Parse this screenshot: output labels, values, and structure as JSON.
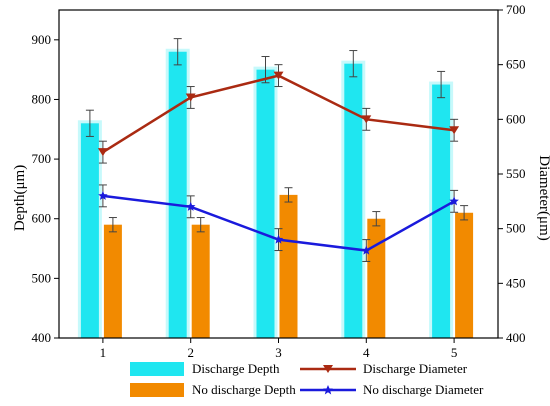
{
  "chart_data": {
    "type": "bar",
    "categories": [
      "1",
      "2",
      "3",
      "4",
      "5"
    ],
    "y_left": {
      "label": "Depth(μm)",
      "range": [
        400,
        950
      ],
      "ticks": [
        "400",
        "500",
        "600",
        "700",
        "800",
        "900"
      ]
    },
    "y_right": {
      "label": "Diameter(μm)",
      "range": [
        400,
        700
      ],
      "ticks": [
        "400",
        "450",
        "500",
        "550",
        "600",
        "650",
        "700"
      ]
    },
    "grid": false,
    "legend_position": "bottom",
    "series": [
      {
        "name": "Discharge Depth",
        "kind": "bar",
        "axis": "left",
        "color": "#1fe6f0",
        "values": [
          760,
          880,
          850,
          860,
          825
        ],
        "errors": [
          22,
          22,
          22,
          22,
          22
        ]
      },
      {
        "name": "No discharge Depth",
        "kind": "bar",
        "axis": "left",
        "color": "#f28a00",
        "values": [
          590,
          590,
          640,
          600,
          610
        ],
        "errors": [
          12,
          12,
          12,
          12,
          12
        ]
      },
      {
        "name": "Discharge Diameter",
        "kind": "line",
        "axis": "right",
        "color": "#aa2a12",
        "marker": "triangle-down",
        "values": [
          570,
          620,
          640,
          600,
          590
        ],
        "errors": [
          10,
          10,
          10,
          10,
          10
        ]
      },
      {
        "name": "No discharge Diameter",
        "kind": "line",
        "axis": "right",
        "color": "#1a1adc",
        "marker": "star",
        "values": [
          530,
          520,
          490,
          480,
          525
        ],
        "errors": [
          10,
          10,
          10,
          10,
          10
        ]
      }
    ]
  }
}
